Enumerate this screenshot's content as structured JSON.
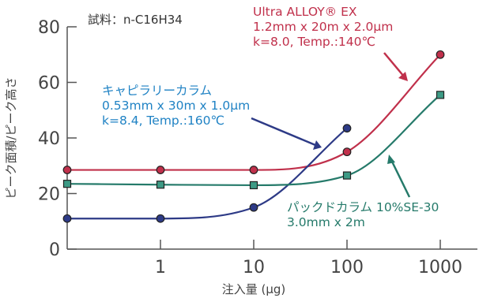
{
  "chart_data": {
    "type": "line",
    "x_scale": "log",
    "xlim": [
      0.1,
      1000
    ],
    "ylim": [
      0,
      80
    ],
    "x_ticks": [
      "1",
      "10",
      "100",
      "1000"
    ],
    "y_ticks": [
      "0",
      "20",
      "40",
      "60",
      "80"
    ],
    "xlabel": "注入量 (μg)",
    "ylabel": "ピーク面積/ピーク高さ",
    "sample_label": "試料：n-C16H34",
    "grid": false,
    "series": [
      {
        "name_lines": [
          "Ultra ALLOY® EX",
          "1.2mm x 20m x 2.0μm",
          "k=8.0, Temp.:140℃"
        ],
        "color": "#c0304b",
        "marker": "circle",
        "x": [
          0.1,
          1,
          10,
          100,
          1000
        ],
        "y": [
          28.5,
          28.5,
          28.5,
          35,
          70
        ]
      },
      {
        "name_lines": [
          "キャピラリーカラム",
          "0.53mm x 30m x 1.0μm",
          "k=8.4, Temp.:160℃"
        ],
        "color": "#2d3a86",
        "marker": "circle",
        "x": [
          0.1,
          1,
          10,
          100
        ],
        "y": [
          11,
          11,
          15,
          43.5
        ]
      },
      {
        "name_lines": [
          "パックドカラム 10%SE-30",
          "3.0mm x 2m"
        ],
        "color": "#257a6a",
        "marker": "square",
        "x": [
          0.1,
          1,
          10,
          100,
          1000
        ],
        "y": [
          23.5,
          23.2,
          23,
          26.5,
          55.5
        ]
      }
    ]
  }
}
